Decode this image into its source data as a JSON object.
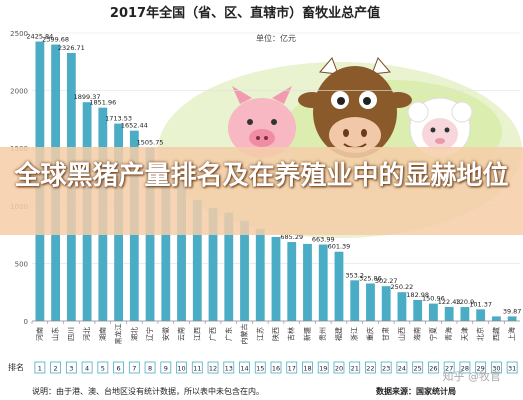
{
  "chart_data": {
    "type": "bar",
    "title": "2017年全国（省、区、直辖市）畜牧业总产值",
    "unit_label": "单位：亿元",
    "ylim": [
      0,
      2500
    ],
    "yticks": [
      0,
      500,
      1000,
      1500,
      2000,
      2500
    ],
    "rank_label": "排名",
    "ranks": [
      1,
      2,
      3,
      4,
      5,
      6,
      7,
      8,
      9,
      10,
      11,
      12,
      13,
      14,
      15,
      16,
      17,
      18,
      19,
      20,
      21,
      22,
      23,
      24,
      25,
      26,
      27,
      28,
      29,
      30,
      31
    ],
    "categories": [
      "河南",
      "山东",
      "四川",
      "河北",
      "湖南",
      "黑龙江",
      "湖北",
      "辽宁",
      "安徽",
      "云南",
      "江西",
      "广西",
      "广东",
      "内蒙古",
      "江苏",
      "陕西",
      "吉林",
      "新疆",
      "贵州",
      "福建",
      "浙江",
      "重庆",
      "甘肃",
      "山西",
      "海南",
      "宁夏",
      "青海",
      "天津",
      "北京",
      "西藏",
      "上海"
    ],
    "values": [
      2425.84,
      2399.68,
      2326.71,
      1899.37,
      1851.96,
      1713.53,
      1652.44,
      1505.75,
      1300,
      1210,
      1050,
      980,
      940,
      870,
      800,
      730,
      685.29,
      669,
      663.99,
      601.39,
      353.2,
      325.86,
      302.27,
      250.22,
      182.98,
      150.96,
      122.43,
      120.9,
      101.37,
      39.87,
      39.87
    ],
    "data_labels": [
      "2425.84",
      "2399.68",
      "2326.71",
      "1899.37",
      "1851.96",
      "1713.53",
      "1652.44",
      "1505.75",
      "",
      "",
      "",
      "",
      "",
      "",
      "",
      "",
      "685.29",
      "",
      "663.99",
      "601.39",
      "353.2",
      "325.86",
      "302.27",
      "250.22",
      "182.98",
      "150.96",
      "122.43",
      "120.9",
      "101.37",
      "",
      "39.87"
    ],
    "note": "说明：由于港、澳、台地区没有统计数据，所以表中未包含在内。",
    "source": "数据来源：国家统计局",
    "banner": "全球黑猪产量排名及在养殖业中的显赫地位",
    "watermark": "知乎 @牧官",
    "colors": {
      "bar": "#4bacc6",
      "rank_box": "#4bacc6",
      "axis": "#888888"
    }
  }
}
